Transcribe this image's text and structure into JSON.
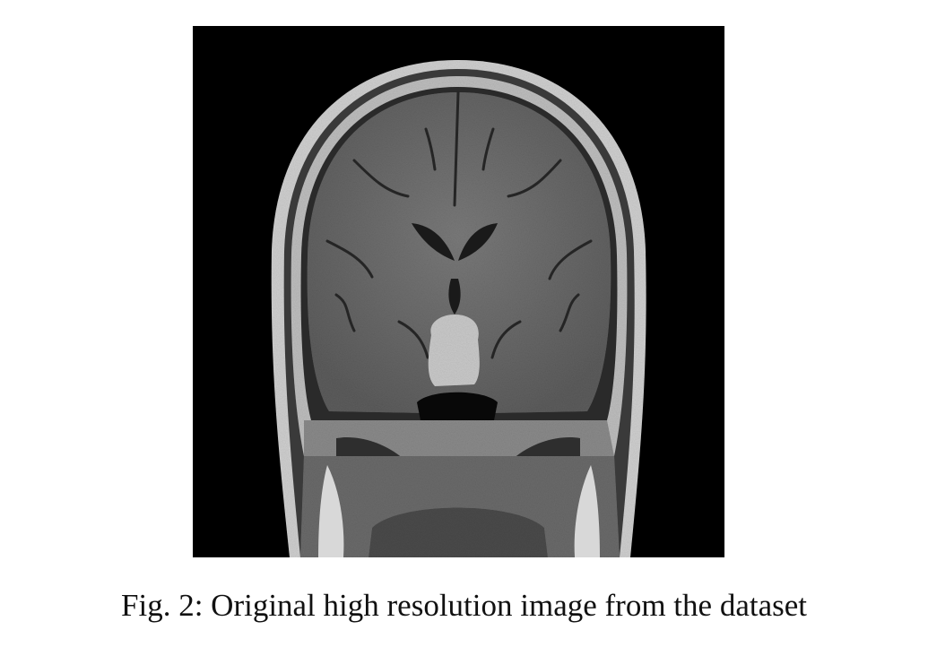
{
  "figure": {
    "image_name": "coronal-brain-mri",
    "caption": "Fig. 2: Original high resolution image from the dataset",
    "colors": {
      "background": "#000000",
      "scalp": "#d8d8d8",
      "brain": "#6e6e6e",
      "sella-mass": "#c9c9c9"
    }
  }
}
